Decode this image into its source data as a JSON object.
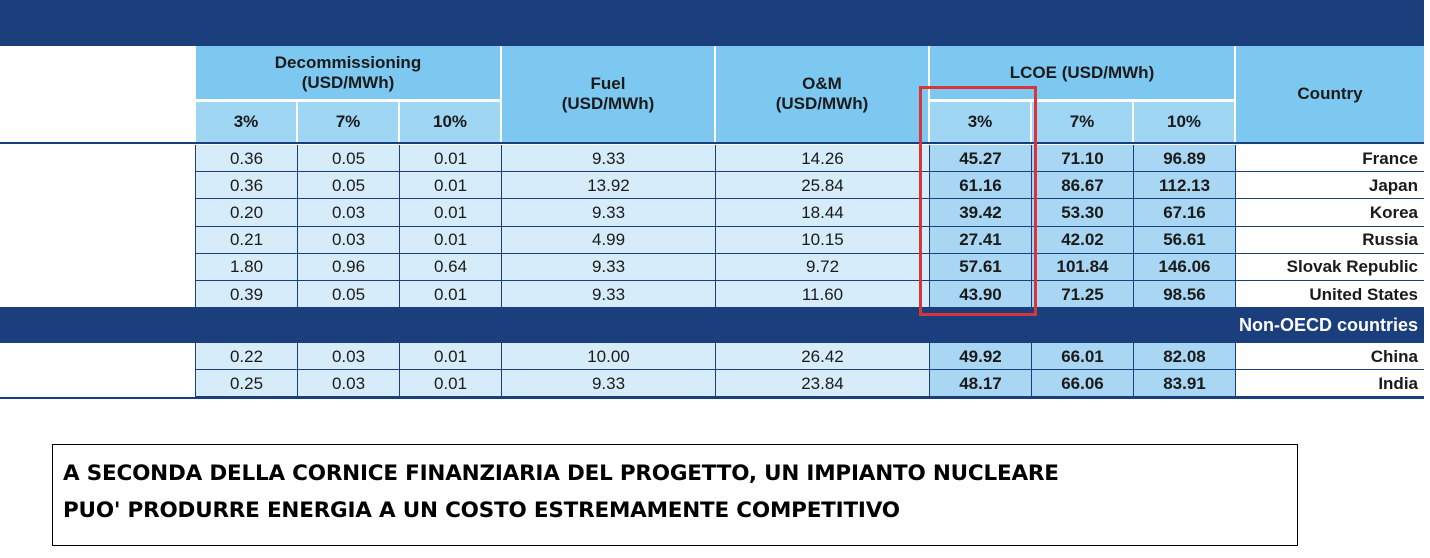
{
  "table": {
    "headers": {
      "decommissioning": "Decommissioning (USD/MWh)",
      "decom_3": "3%",
      "decom_7": "7%",
      "decom_10": "10%",
      "fuel": "Fuel (USD/MWh)",
      "om": "O&M (USD/MWh)",
      "lcoe": "LCOE (USD/MWh)",
      "lcoe_3": "3%",
      "lcoe_7": "7%",
      "lcoe_10": "10%",
      "country": "Country"
    },
    "oecd_rows": [
      {
        "d3": "0.36",
        "d7": "0.05",
        "d10": "0.01",
        "fuel": "9.33",
        "om": "14.26",
        "l3": "45.27",
        "l7": "71.10",
        "l10": "96.89",
        "country": "France"
      },
      {
        "d3": "0.36",
        "d7": "0.05",
        "d10": "0.01",
        "fuel": "13.92",
        "om": "25.84",
        "l3": "61.16",
        "l7": "86.67",
        "l10": "112.13",
        "country": "Japan"
      },
      {
        "d3": "0.20",
        "d7": "0.03",
        "d10": "0.01",
        "fuel": "9.33",
        "om": "18.44",
        "l3": "39.42",
        "l7": "53.30",
        "l10": "67.16",
        "country": "Korea"
      },
      {
        "d3": "0.21",
        "d7": "0.03",
        "d10": "0.01",
        "fuel": "4.99",
        "om": "10.15",
        "l3": "27.41",
        "l7": "42.02",
        "l10": "56.61",
        "country": "Russia"
      },
      {
        "d3": "1.80",
        "d7": "0.96",
        "d10": "0.64",
        "fuel": "9.33",
        "om": "9.72",
        "l3": "57.61",
        "l7": "101.84",
        "l10": "146.06",
        "country": "Slovak Republic"
      },
      {
        "d3": "0.39",
        "d7": "0.05",
        "d10": "0.01",
        "fuel": "9.33",
        "om": "11.60",
        "l3": "43.90",
        "l7": "71.25",
        "l10": "98.56",
        "country": "United States"
      }
    ],
    "section_label": "Non-OECD countries",
    "non_oecd_rows": [
      {
        "d3": "0.22",
        "d7": "0.03",
        "d10": "0.01",
        "fuel": "10.00",
        "om": "26.42",
        "l3": "49.92",
        "l7": "66.01",
        "l10": "82.08",
        "country": "China"
      },
      {
        "d3": "0.25",
        "d7": "0.03",
        "d10": "0.01",
        "fuel": "9.33",
        "om": "23.84",
        "l3": "48.17",
        "l7": "66.06",
        "l10": "83.91",
        "country": "India"
      }
    ],
    "highlight_color": "#d6363a",
    "header_color": "#1b3e7c"
  },
  "caption": {
    "line1": "A SECONDA DELLA CORNICE FINANZIARIA DEL PROGETTO, UN IMPIANTO NUCLEARE",
    "line2": "PUO' PRODURRE ENERGIA A UN COSTO ESTREMAMENTE COMPETITIVO"
  }
}
